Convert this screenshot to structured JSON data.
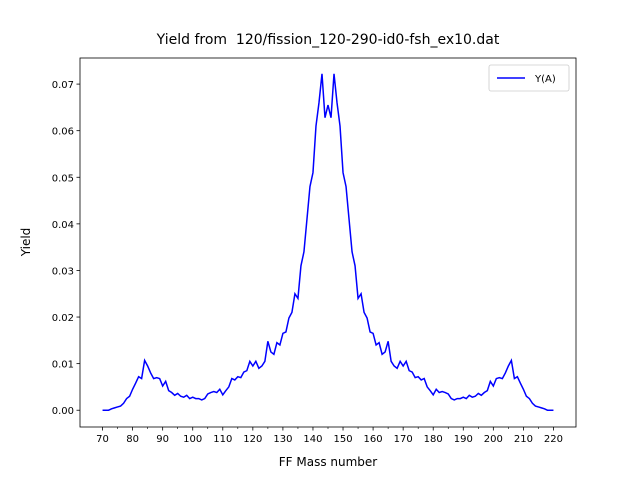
{
  "chart_data": {
    "type": "line",
    "title": "Yield from  120/fission_120-290-id0-fsh_ex10.dat",
    "x_label": "FF Mass number",
    "y_label": "Yield",
    "x": [
      70,
      71,
      72,
      73,
      74,
      75,
      76,
      77,
      78,
      79,
      80,
      81,
      82,
      83,
      84,
      85,
      86,
      87,
      88,
      89,
      90,
      91,
      92,
      93,
      94,
      95,
      96,
      97,
      98,
      99,
      100,
      101,
      102,
      103,
      104,
      105,
      106,
      107,
      108,
      109,
      110,
      111,
      112,
      113,
      114,
      115,
      116,
      117,
      118,
      119,
      120,
      121,
      122,
      123,
      124,
      125,
      126,
      127,
      128,
      129,
      130,
      131,
      132,
      133,
      134,
      135,
      136,
      137,
      138,
      139,
      140,
      141,
      142,
      143,
      144,
      145,
      146,
      147,
      148,
      149,
      150,
      151,
      152,
      153,
      154,
      155,
      156,
      157,
      158,
      159,
      160,
      161,
      162,
      163,
      164,
      165,
      166,
      167,
      168,
      169,
      170,
      171,
      172,
      173,
      174,
      175,
      176,
      177,
      178,
      179,
      180,
      181,
      182,
      183,
      184,
      185,
      186,
      187,
      188,
      189,
      190,
      191,
      192,
      193,
      194,
      195,
      196,
      197,
      198,
      199,
      200,
      201,
      202,
      203,
      204,
      205,
      206,
      207,
      208,
      209,
      210,
      211,
      212,
      213,
      214,
      215,
      216,
      217,
      218,
      219,
      220
    ],
    "series": [
      {
        "name": "Y(A)",
        "color": "#0000ff",
        "values": [
          0,
          0,
          0,
          0.0003,
          0.0005,
          0.0007,
          0.0009,
          0.0015,
          0.0025,
          0.003,
          0.0045,
          0.0058,
          0.0072,
          0.0068,
          0.0107,
          0.0095,
          0.008,
          0.0068,
          0.007,
          0.0068,
          0.0052,
          0.0062,
          0.0042,
          0.0038,
          0.0032,
          0.0036,
          0.003,
          0.0028,
          0.0032,
          0.0025,
          0.0028,
          0.0025,
          0.0025,
          0.0022,
          0.0025,
          0.0035,
          0.0038,
          0.004,
          0.0038,
          0.0045,
          0.0033,
          0.0042,
          0.005,
          0.0068,
          0.0065,
          0.0072,
          0.007,
          0.0082,
          0.0085,
          0.0105,
          0.0095,
          0.0105,
          0.009,
          0.0095,
          0.0105,
          0.0148,
          0.0125,
          0.012,
          0.0145,
          0.014,
          0.0165,
          0.0168,
          0.0198,
          0.021,
          0.025,
          0.024,
          0.031,
          0.034,
          0.041,
          0.048,
          0.051,
          0.061,
          0.066,
          0.0722,
          0.0628,
          0.0655,
          0.0628,
          0.0722,
          0.066,
          0.061,
          0.051,
          0.048,
          0.041,
          0.034,
          0.031,
          0.024,
          0.025,
          0.021,
          0.0198,
          0.0168,
          0.0165,
          0.014,
          0.0145,
          0.012,
          0.0125,
          0.0148,
          0.0105,
          0.0095,
          0.009,
          0.0105,
          0.0095,
          0.0105,
          0.0085,
          0.0082,
          0.007,
          0.0072,
          0.0065,
          0.0068,
          0.005,
          0.0042,
          0.0033,
          0.0045,
          0.0038,
          0.004,
          0.0038,
          0.0035,
          0.0025,
          0.0022,
          0.0025,
          0.0025,
          0.0028,
          0.0025,
          0.0032,
          0.0028,
          0.003,
          0.0036,
          0.0032,
          0.0038,
          0.0042,
          0.0062,
          0.0052,
          0.0068,
          0.007,
          0.0068,
          0.008,
          0.0095,
          0.0107,
          0.0068,
          0.0072,
          0.0058,
          0.0045,
          0.003,
          0.0025,
          0.0015,
          0.0009,
          0.0007,
          0.0005,
          0.0003,
          0,
          0,
          0
        ]
      }
    ],
    "xlim": [
      62.5,
      227.5
    ],
    "xticks": [
      70,
      80,
      90,
      100,
      110,
      120,
      130,
      140,
      150,
      160,
      170,
      180,
      190,
      200,
      210,
      220
    ],
    "xminorticks": [
      75,
      85,
      95,
      105,
      115,
      125,
      135,
      145,
      155,
      165,
      175,
      185,
      195,
      205,
      215
    ],
    "ylim": [
      -0.0036,
      0.0756
    ],
    "yticks": [
      {
        "value": 0,
        "label": "0.00"
      },
      {
        "value": 0.01,
        "label": "0.01"
      },
      {
        "value": 0.02,
        "label": "0.02"
      },
      {
        "value": 0.03,
        "label": "0.03"
      },
      {
        "value": 0.04,
        "label": "0.04"
      },
      {
        "value": 0.05,
        "label": "0.05"
      },
      {
        "value": 0.06,
        "label": "0.06"
      },
      {
        "value": 0.07,
        "label": "0.07"
      }
    ],
    "grid": false,
    "legend": "upper right"
  }
}
